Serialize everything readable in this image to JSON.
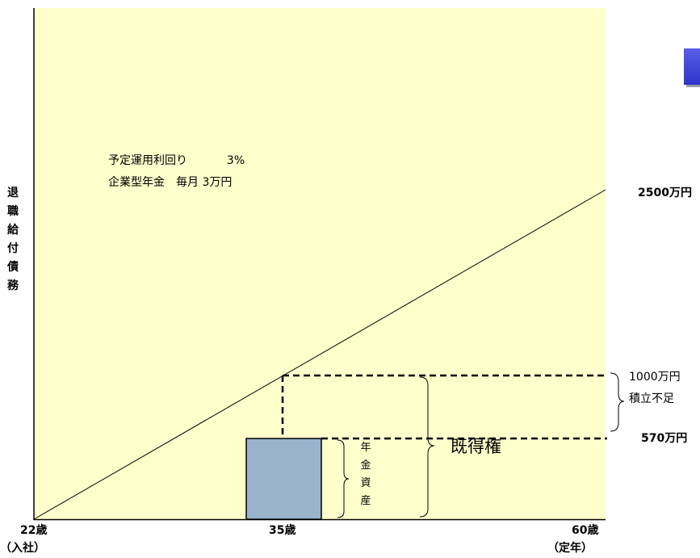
{
  "diagram": {
    "y_axis_label": [
      "退",
      "職",
      "給",
      "付",
      "債",
      "務"
    ],
    "info": {
      "line1_label": "予定運用利回り",
      "line1_value": "3%",
      "line2": "企業型年金　毎月  3万円"
    },
    "x_ticks": [
      {
        "top": "22歳",
        "bottom": "（入社）"
      },
      {
        "top": "35歳",
        "bottom": ""
      },
      {
        "top": "60歳",
        "bottom": "（定年）"
      }
    ],
    "right_labels": {
      "top": "2500万円",
      "mid": "1000万円",
      "shortfall": "積立不足",
      "low": "570万円"
    },
    "pension_assets": [
      "年",
      "金",
      "資",
      "産"
    ],
    "vested_rights": "既得権",
    "colors": {
      "background": "#ffffcc",
      "asset_box": "#99b3cc",
      "tab": "#3a3fd6"
    }
  }
}
